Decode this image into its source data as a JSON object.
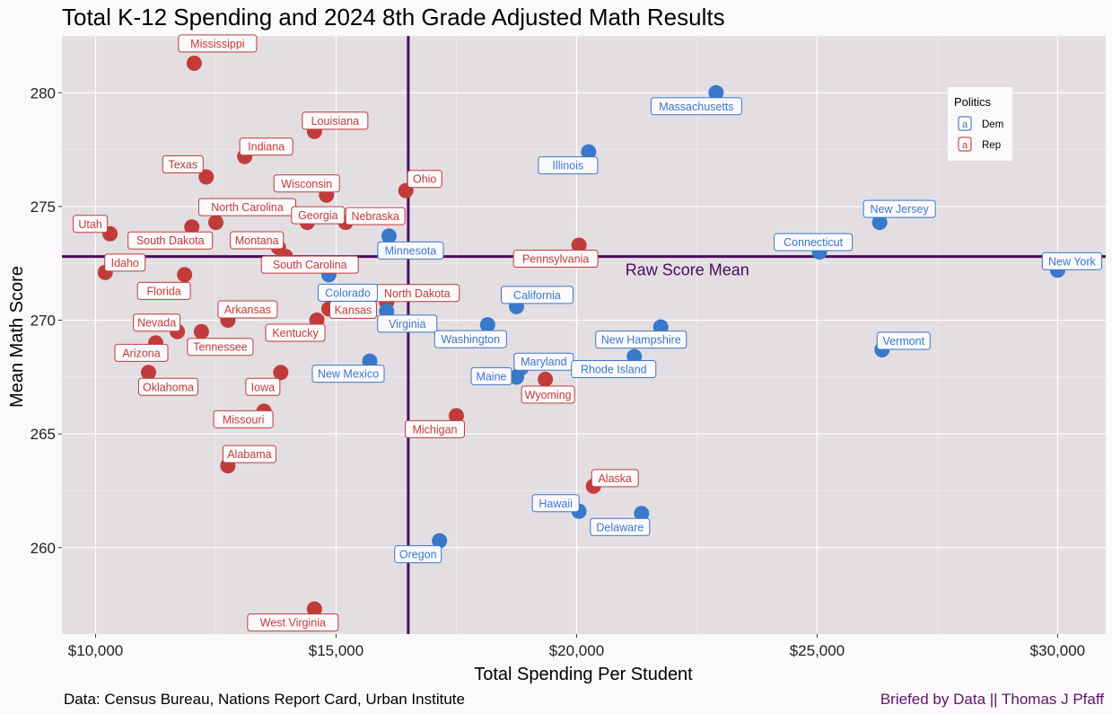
{
  "chart_data": {
    "type": "scatter",
    "title": "Total K-12 Spending and 2024 8th Grade Adjusted Math Results",
    "xlabel": "Total Spending Per Student",
    "ylabel": "Mean Math Score",
    "xlim": [
      9300,
      31000
    ],
    "ylim": [
      256.2,
      282.5
    ],
    "x_ticks": [
      10000,
      15000,
      20000,
      25000,
      30000
    ],
    "x_tick_labels": [
      "$10,000",
      "$15,000",
      "$20,000",
      "$25,000",
      "$30,000"
    ],
    "y_ticks": [
      260,
      265,
      270,
      275,
      280
    ],
    "y_tick_labels": [
      "260",
      "265",
      "270",
      "275",
      "280"
    ],
    "grid": true,
    "reference_lines": {
      "vertical_x": 16500,
      "horizontal_y": 272.8,
      "horizontal_label": "Raw Score Mean"
    },
    "legend": {
      "title": "Politics",
      "placement": "top-right",
      "entries": [
        {
          "key": "Dem",
          "label": "Dem",
          "glyph": "a"
        },
        {
          "key": "Rep",
          "label": "Rep",
          "glyph": "a"
        }
      ]
    },
    "colors": {
      "Dem": "#3a78c9",
      "Rep": "#c23b3b",
      "reference": "#4d0a5c",
      "panel": "#e2dee2",
      "caption_right": "#5a1666"
    },
    "points": [
      {
        "state": "Mississippi",
        "x": 12050,
        "y": 281.3,
        "party": "Rep"
      },
      {
        "state": "Louisiana",
        "x": 14550,
        "y": 278.3,
        "party": "Rep"
      },
      {
        "state": "Indiana",
        "x": 13100,
        "y": 277.2,
        "party": "Rep"
      },
      {
        "state": "Texas",
        "x": 12300,
        "y": 276.3,
        "party": "Rep"
      },
      {
        "state": "Wisconsin",
        "x": 14800,
        "y": 275.5,
        "party": "Rep"
      },
      {
        "state": "Ohio",
        "x": 16450,
        "y": 275.7,
        "party": "Rep"
      },
      {
        "state": "Utah",
        "x": 10300,
        "y": 273.8,
        "party": "Rep"
      },
      {
        "state": "South Dakota",
        "x": 12000,
        "y": 274.1,
        "party": "Rep"
      },
      {
        "state": "North Carolina",
        "x": 12500,
        "y": 274.3,
        "party": "Rep"
      },
      {
        "state": "Georgia",
        "x": 14400,
        "y": 274.3,
        "party": "Rep"
      },
      {
        "state": "Nebraska",
        "x": 15200,
        "y": 274.3,
        "party": "Rep"
      },
      {
        "state": "Montana",
        "x": 13800,
        "y": 273.2,
        "party": "Rep"
      },
      {
        "state": "South Carolina",
        "x": 13950,
        "y": 272.8,
        "party": "Rep"
      },
      {
        "state": "Idaho",
        "x": 10200,
        "y": 272.1,
        "party": "Rep"
      },
      {
        "state": "Florida",
        "x": 11850,
        "y": 272.0,
        "party": "Rep"
      },
      {
        "state": "North Dakota",
        "x": 16050,
        "y": 270.8,
        "party": "Rep"
      },
      {
        "state": "Arkansas",
        "x": 12750,
        "y": 270.0,
        "party": "Rep"
      },
      {
        "state": "Kansas",
        "x": 14850,
        "y": 270.5,
        "party": "Rep"
      },
      {
        "state": "Kentucky",
        "x": 14600,
        "y": 270.0,
        "party": "Rep"
      },
      {
        "state": "Nevada",
        "x": 11700,
        "y": 269.5,
        "party": "Rep"
      },
      {
        "state": "Tennessee",
        "x": 12200,
        "y": 269.5,
        "party": "Rep"
      },
      {
        "state": "Arizona",
        "x": 11250,
        "y": 269.0,
        "party": "Rep"
      },
      {
        "state": "Oklahoma",
        "x": 11100,
        "y": 267.7,
        "party": "Rep"
      },
      {
        "state": "Iowa",
        "x": 13850,
        "y": 267.7,
        "party": "Rep"
      },
      {
        "state": "Missouri",
        "x": 13500,
        "y": 266.0,
        "party": "Rep"
      },
      {
        "state": "Alabama",
        "x": 12750,
        "y": 263.6,
        "party": "Rep"
      },
      {
        "state": "West Virginia",
        "x": 14550,
        "y": 257.3,
        "party": "Rep"
      },
      {
        "state": "Michigan",
        "x": 17500,
        "y": 265.8,
        "party": "Rep"
      },
      {
        "state": "Pennsylvania",
        "x": 20050,
        "y": 273.3,
        "party": "Rep"
      },
      {
        "state": "Wyoming",
        "x": 19350,
        "y": 267.4,
        "party": "Rep"
      },
      {
        "state": "Alaska",
        "x": 20350,
        "y": 262.7,
        "party": "Rep"
      },
      {
        "state": "Massachusetts",
        "x": 22900,
        "y": 280.0,
        "party": "Dem"
      },
      {
        "state": "Illinois",
        "x": 20250,
        "y": 277.4,
        "party": "Dem"
      },
      {
        "state": "Minnesota",
        "x": 16100,
        "y": 273.7,
        "party": "Dem"
      },
      {
        "state": "Colorado",
        "x": 14850,
        "y": 272.0,
        "party": "Dem"
      },
      {
        "state": "Virginia",
        "x": 16050,
        "y": 270.4,
        "party": "Dem"
      },
      {
        "state": "New Mexico",
        "x": 15700,
        "y": 268.2,
        "party": "Dem"
      },
      {
        "state": "Washington",
        "x": 18150,
        "y": 269.8,
        "party": "Dem"
      },
      {
        "state": "California",
        "x": 18750,
        "y": 270.6,
        "party": "Dem"
      },
      {
        "state": "Maryland",
        "x": 18850,
        "y": 267.9,
        "party": "Dem"
      },
      {
        "state": "Maine",
        "x": 18750,
        "y": 267.5,
        "party": "Dem"
      },
      {
        "state": "New Hampshire",
        "x": 21750,
        "y": 269.7,
        "party": "Dem"
      },
      {
        "state": "Rhode Island",
        "x": 21200,
        "y": 268.4,
        "party": "Dem"
      },
      {
        "state": "Hawaii",
        "x": 20050,
        "y": 261.6,
        "party": "Dem"
      },
      {
        "state": "Delaware",
        "x": 21350,
        "y": 261.5,
        "party": "Dem"
      },
      {
        "state": "Oregon",
        "x": 17150,
        "y": 260.3,
        "party": "Dem"
      },
      {
        "state": "Connecticut",
        "x": 25050,
        "y": 273.0,
        "party": "Dem"
      },
      {
        "state": "New Jersey",
        "x": 26300,
        "y": 274.3,
        "party": "Dem"
      },
      {
        "state": "Vermont",
        "x": 26350,
        "y": 268.7,
        "party": "Dem"
      },
      {
        "state": "New York",
        "x": 30000,
        "y": 272.2,
        "party": "Dem"
      }
    ]
  },
  "caption": {
    "left": "Data: Census Bureau, Nations Report Card, Urban Institute",
    "right": "Briefed by Data || Thomas J Pfaff"
  }
}
